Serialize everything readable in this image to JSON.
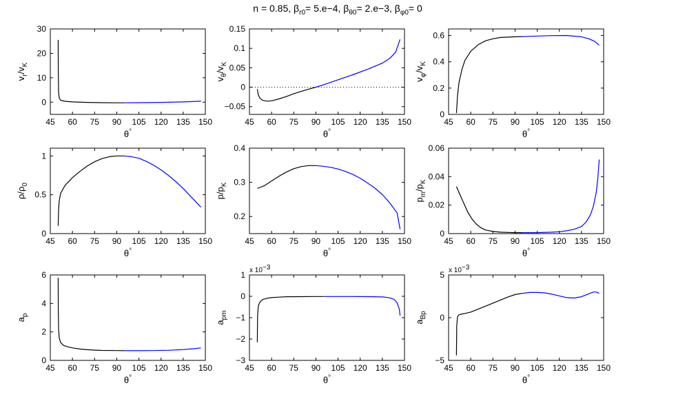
{
  "title": {
    "n_part": "n = 0.85, ",
    "b1_sym": "β",
    "b1_sub": "r0",
    "b1_rest": "= 5.e−4, ",
    "b2_sym": "β",
    "b2_sub": "θ0",
    "b2_rest": "= 2.e−3, ",
    "b3_sym": "β",
    "b3_sub": "φ0",
    "b3_rest": "= 0"
  },
  "colors": {
    "inner": "#000000",
    "outer": "#0000ff",
    "zero_line": "#000000"
  },
  "xaxis": {
    "label": "θ",
    "label_sup": "°",
    "ticks": [
      45,
      60,
      75,
      90,
      105,
      120,
      135,
      150
    ],
    "xlim": [
      45,
      150
    ]
  },
  "chart_data": [
    {
      "type": "line",
      "ylabel": {
        "num": "v",
        "num_sub": "r",
        "den": "/v",
        "den_sub": "K"
      },
      "ylim": [
        -5,
        30
      ],
      "yticks": [
        0,
        10,
        20,
        30
      ],
      "ytick_labels": [
        "0",
        "10",
        "20",
        "30"
      ],
      "exponent": "",
      "series": [
        {
          "color": "inner",
          "x": [
            50.3,
            50.4,
            50.6,
            51,
            52,
            55,
            60,
            70,
            80,
            90,
            95
          ],
          "y": [
            25.5,
            12,
            4,
            1.8,
            0.8,
            0.35,
            0.1,
            -0.1,
            -0.2,
            -0.25,
            -0.25
          ]
        },
        {
          "color": "outer",
          "x": [
            95,
            105,
            120,
            135,
            147
          ],
          "y": [
            -0.25,
            -0.2,
            -0.1,
            0.1,
            0.4
          ]
        }
      ]
    },
    {
      "type": "line",
      "ylabel": {
        "num": "v",
        "num_sub": "θ",
        "den": "/v",
        "den_sub": "K"
      },
      "ylim": [
        -0.07,
        0.15
      ],
      "yticks": [
        -0.05,
        0,
        0.05,
        0.1,
        0.15
      ],
      "ytick_labels": [
        "−0.05",
        "0",
        "0.05",
        "0.1",
        "0.15"
      ],
      "exponent": "",
      "zero_line": true,
      "series": [
        {
          "color": "inner",
          "x": [
            50.3,
            51,
            52,
            54,
            57,
            60,
            65,
            70,
            75,
            80,
            85,
            90
          ],
          "y": [
            -0.005,
            -0.02,
            -0.028,
            -0.034,
            -0.036,
            -0.035,
            -0.03,
            -0.024,
            -0.017,
            -0.011,
            -0.005,
            0
          ]
        },
        {
          "color": "outer",
          "x": [
            90,
            95,
            105,
            115,
            125,
            135,
            140,
            144,
            147
          ],
          "y": [
            0,
            0.006,
            0.019,
            0.032,
            0.046,
            0.062,
            0.074,
            0.09,
            0.123
          ]
        }
      ]
    },
    {
      "type": "line",
      "ylabel": {
        "num": "v",
        "num_sub": "φ",
        "den": "/v",
        "den_sub": "K"
      },
      "ylim": [
        0,
        0.65
      ],
      "yticks": [
        0,
        0.2,
        0.4,
        0.6
      ],
      "ytick_labels": [
        "0",
        "0.2",
        "0.4",
        "0.6"
      ],
      "exponent": "",
      "series": [
        {
          "color": "inner",
          "x": [
            50.3,
            51,
            52,
            54,
            56,
            60,
            65,
            70,
            75,
            80,
            90,
            95
          ],
          "y": [
            0.01,
            0.14,
            0.24,
            0.34,
            0.41,
            0.48,
            0.53,
            0.56,
            0.575,
            0.585,
            0.59,
            0.592
          ]
        },
        {
          "color": "outer",
          "x": [
            95,
            105,
            115,
            125,
            135,
            140,
            144,
            147
          ],
          "y": [
            0.592,
            0.596,
            0.599,
            0.6,
            0.59,
            0.575,
            0.555,
            0.525
          ]
        }
      ]
    },
    {
      "type": "line",
      "ylabel": {
        "num": "ρ",
        "num_sub": "",
        "den": "/ρ",
        "den_sub": "0"
      },
      "ylim": [
        0,
        1.1
      ],
      "yticks": [
        0,
        0.5,
        1
      ],
      "ytick_labels": [
        "0",
        "0.5",
        "1"
      ],
      "exponent": "",
      "series": [
        {
          "color": "inner",
          "x": [
            50.3,
            50.6,
            51,
            52,
            55,
            60,
            65,
            70,
            75,
            80,
            85,
            90,
            95
          ],
          "y": [
            0.1,
            0.3,
            0.42,
            0.52,
            0.62,
            0.72,
            0.8,
            0.87,
            0.925,
            0.965,
            0.99,
            1.0,
            1.0
          ]
        },
        {
          "color": "outer",
          "x": [
            95,
            100,
            105,
            110,
            115,
            120,
            125,
            130,
            135,
            140,
            145,
            147
          ],
          "y": [
            1.0,
            0.99,
            0.97,
            0.93,
            0.88,
            0.82,
            0.75,
            0.67,
            0.58,
            0.48,
            0.38,
            0.34
          ]
        }
      ]
    },
    {
      "type": "line",
      "ylabel": {
        "num": "p",
        "num_sub": "",
        "den": "/p",
        "den_sub": "K"
      },
      "ylim": [
        0.15,
        0.4
      ],
      "yticks": [
        0.2,
        0.3,
        0.4
      ],
      "ytick_labels": [
        "0.2",
        "0.3",
        "0.4"
      ],
      "exponent": "",
      "series": [
        {
          "color": "inner",
          "x": [
            50.3,
            55,
            60,
            65,
            70,
            75,
            80,
            85,
            90
          ],
          "y": [
            0.282,
            0.29,
            0.304,
            0.318,
            0.33,
            0.34,
            0.346,
            0.349,
            0.349
          ]
        },
        {
          "color": "outer",
          "x": [
            90,
            95,
            100,
            105,
            110,
            115,
            120,
            125,
            130,
            135,
            140,
            145,
            147
          ],
          "y": [
            0.349,
            0.347,
            0.344,
            0.339,
            0.332,
            0.323,
            0.312,
            0.298,
            0.283,
            0.264,
            0.24,
            0.21,
            0.163
          ]
        }
      ]
    },
    {
      "type": "line",
      "ylabel": {
        "num": "p",
        "num_sub": "m",
        "den": "/p",
        "den_sub": "K"
      },
      "ylim": [
        0,
        0.06
      ],
      "yticks": [
        0,
        0.02,
        0.04,
        0.06
      ],
      "ytick_labels": [
        "0",
        "0.02",
        "0.04",
        "0.06"
      ],
      "exponent": "",
      "series": [
        {
          "color": "inner",
          "x": [
            50.3,
            52,
            55,
            58,
            61,
            64,
            67,
            70,
            75,
            80,
            85,
            90,
            95
          ],
          "y": [
            0.033,
            0.029,
            0.022,
            0.015,
            0.01,
            0.0065,
            0.004,
            0.0025,
            0.0015,
            0.001,
            0.0008,
            0.0007,
            0.0007
          ]
        },
        {
          "color": "outer",
          "x": [
            95,
            105,
            115,
            120,
            125,
            130,
            135,
            138,
            141,
            143,
            145,
            146,
            147
          ],
          "y": [
            0.0007,
            0.0007,
            0.001,
            0.0013,
            0.002,
            0.003,
            0.005,
            0.008,
            0.013,
            0.019,
            0.029,
            0.038,
            0.052
          ]
        }
      ]
    },
    {
      "type": "line",
      "ylabel": {
        "num": "a",
        "num_sub": "p",
        "den": "",
        "den_sub": ""
      },
      "ylim": [
        0,
        6
      ],
      "yticks": [
        0,
        2,
        4,
        6
      ],
      "ytick_labels": [
        "0",
        "2",
        "4",
        "6"
      ],
      "exponent": "",
      "series": [
        {
          "color": "inner",
          "x": [
            50.3,
            50.4,
            50.6,
            51,
            52,
            54,
            57,
            60,
            65,
            70,
            75,
            80,
            90,
            95
          ],
          "y": [
            5.8,
            3.5,
            2.2,
            1.6,
            1.25,
            1.05,
            0.95,
            0.88,
            0.8,
            0.75,
            0.72,
            0.7,
            0.69,
            0.68
          ]
        },
        {
          "color": "outer",
          "x": [
            95,
            105,
            115,
            125,
            135,
            142,
            147
          ],
          "y": [
            0.68,
            0.68,
            0.69,
            0.71,
            0.76,
            0.82,
            0.88
          ]
        }
      ]
    },
    {
      "type": "line",
      "ylabel": {
        "num": "a",
        "num_sub": "pm",
        "den": "",
        "den_sub": ""
      },
      "ylim": [
        -3,
        1
      ],
      "yticks": [
        -3,
        -2,
        -1,
        0,
        1
      ],
      "ytick_labels": [
        "−3",
        "−2",
        "−1",
        "0",
        "1"
      ],
      "exponent": "x 10",
      "exponent_power": "−3",
      "series": [
        {
          "color": "inner",
          "x": [
            50.3,
            50.5,
            51,
            52,
            54,
            57,
            60,
            65,
            70,
            80,
            90,
            95
          ],
          "y": [
            -2.15,
            -0.9,
            -0.45,
            -0.28,
            -0.15,
            -0.09,
            -0.06,
            -0.04,
            -0.02,
            -0.015,
            -0.01,
            -0.01
          ]
        },
        {
          "color": "outer",
          "x": [
            95,
            105,
            115,
            125,
            135,
            140,
            143,
            145,
            146.5,
            147
          ],
          "y": [
            -0.01,
            -0.01,
            -0.01,
            -0.015,
            -0.03,
            -0.07,
            -0.15,
            -0.3,
            -0.6,
            -0.9
          ]
        }
      ]
    },
    {
      "type": "line",
      "ylabel": {
        "num": "a",
        "num_sub": "Bp",
        "den": "",
        "den_sub": ""
      },
      "ylim": [
        -5,
        5
      ],
      "yticks": [
        -5,
        0,
        5
      ],
      "ytick_labels": [
        "−5",
        "0",
        "5"
      ],
      "exponent": "x 10",
      "exponent_power": "−3",
      "series": [
        {
          "color": "inner",
          "x": [
            50.3,
            50.5,
            51,
            52,
            55,
            60,
            65,
            70,
            75,
            80,
            85,
            90,
            95
          ],
          "y": [
            -4.4,
            -1,
            0.1,
            0.35,
            0.45,
            0.65,
            1.0,
            1.35,
            1.7,
            2.05,
            2.4,
            2.7,
            2.85
          ]
        },
        {
          "color": "outer",
          "x": [
            95,
            100,
            105,
            110,
            115,
            120,
            125,
            130,
            135,
            140,
            143,
            145,
            147
          ],
          "y": [
            2.85,
            2.95,
            2.95,
            2.9,
            2.75,
            2.55,
            2.35,
            2.3,
            2.45,
            2.8,
            3.0,
            3.0,
            2.85
          ]
        }
      ]
    }
  ]
}
